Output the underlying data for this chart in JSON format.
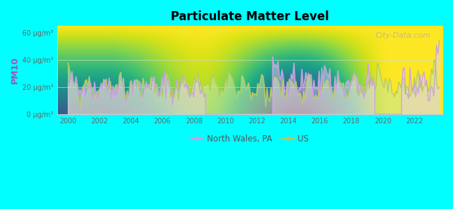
{
  "title": "Particulate Matter Level",
  "ylabel": "PM10",
  "background_outer": "#00FFFF",
  "watermark": "City-Data.com",
  "yticks": [
    0,
    20,
    40,
    60
  ],
  "ytick_labels": [
    "0 μg/m³",
    "20 μg/m³",
    "40 μg/m³",
    "60 μg/m³"
  ],
  "xticks": [
    2000,
    2002,
    2004,
    2006,
    2008,
    2010,
    2012,
    2014,
    2016,
    2018,
    2020,
    2022
  ],
  "xmin": 1999.3,
  "xmax": 2023.8,
  "ymin": 0,
  "ymax": 65,
  "color_nw": "#c8a0e0",
  "color_us": "#b8c860",
  "fill_us": "#c8e8a0",
  "fill_nw": "#e8d0f0",
  "legend_label_nw": "North Wales, PA",
  "legend_label_us": "US"
}
